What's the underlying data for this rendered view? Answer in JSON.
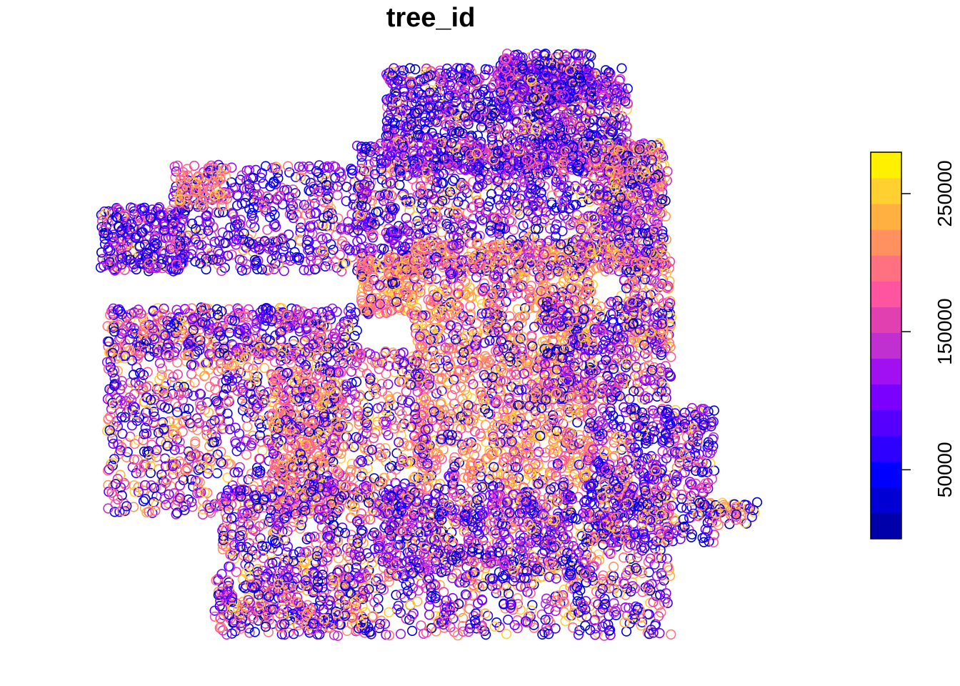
{
  "chart_data": {
    "type": "scatter",
    "title": "tree_id",
    "marker": "open-circle",
    "legend": {
      "type": "colorbar",
      "placement": "right",
      "range": [
        0,
        280000
      ],
      "ticks": [
        50000,
        150000,
        250000
      ],
      "tick_labels": [
        "50000",
        "150000",
        "250000"
      ],
      "colors": [
        "#0000AA",
        "#0000D4",
        "#0000FF",
        "#2E00FF",
        "#5500FF",
        "#7A00FF",
        "#A010F0",
        "#C030D0",
        "#E040B0",
        "#FF55A0",
        "#FF7080",
        "#FF9060",
        "#FFB040",
        "#FFD030",
        "#FFF000"
      ]
    },
    "axes": "none",
    "grid": false,
    "note": "Map-style point plot of tree_id values; color encodes tree_id"
  }
}
